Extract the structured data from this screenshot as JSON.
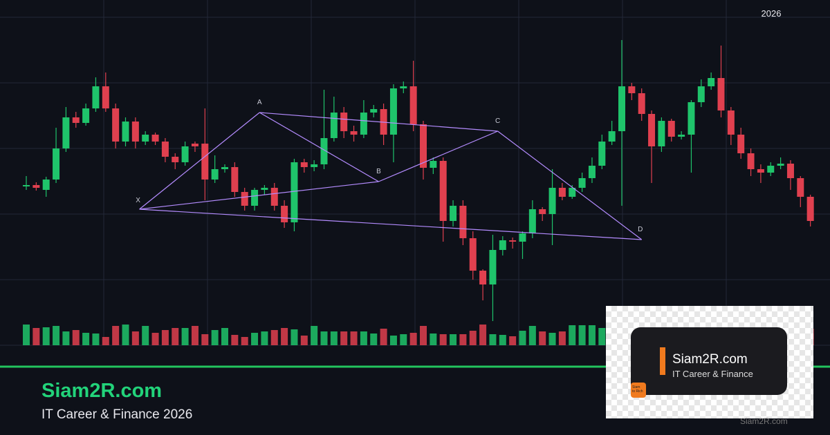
{
  "chart_data": {
    "type": "candlestick",
    "year_label": "2026",
    "open": [
      230,
      232,
      225,
      240,
      285,
      330,
      322,
      343,
      375,
      343,
      295,
      324,
      295,
      305,
      295,
      273,
      265,
      292,
      292,
      240,
      255,
      258,
      222,
      202,
      225,
      228,
      202,
      178,
      265,
      258,
      262,
      300,
      337,
      310,
      305,
      337,
      342,
      305,
      372,
      375,
      320,
      257,
      267,
      180,
      202,
      155,
      108,
      88,
      138,
      152,
      150,
      162,
      197,
      190,
      228,
      215,
      228,
      242,
      260,
      295,
      310,
      375,
      365,
      335,
      288,
      325,
      302,
      305,
      352,
      375,
      387,
      340,
      305,
      278,
      255,
      250,
      260,
      263,
      242,
      215
    ],
    "high": [
      245,
      236,
      244,
      315,
      345,
      338,
      350,
      388,
      395,
      350,
      330,
      330,
      310,
      308,
      300,
      278,
      295,
      295,
      343,
      275,
      262,
      265,
      228,
      228,
      232,
      235,
      210,
      270,
      270,
      268,
      370,
      360,
      345,
      318,
      355,
      348,
      350,
      378,
      382,
      412,
      325,
      272,
      272,
      210,
      210,
      165,
      110,
      160,
      158,
      156,
      165,
      210,
      200,
      255,
      235,
      232,
      250,
      272,
      305,
      325,
      442,
      380,
      372,
      340,
      330,
      328,
      310,
      355,
      385,
      395,
      434,
      345,
      315,
      285,
      262,
      265,
      272,
      268,
      245,
      218
    ],
    "low": [
      225,
      224,
      215,
      235,
      280,
      315,
      318,
      338,
      338,
      285,
      288,
      285,
      290,
      290,
      265,
      255,
      260,
      280,
      210,
      235,
      250,
      215,
      195,
      195,
      218,
      195,
      170,
      165,
      250,
      252,
      255,
      295,
      300,
      295,
      300,
      330,
      290,
      265,
      365,
      310,
      240,
      248,
      150,
      172,
      145,
      95,
      65,
      35,
      130,
      140,
      125,
      155,
      180,
      145,
      210,
      212,
      222,
      235,
      255,
      290,
      202,
      355,
      325,
      235,
      280,
      295,
      298,
      250,
      345,
      370,
      330,
      290,
      270,
      245,
      235,
      245,
      255,
      225,
      200,
      172
    ],
    "close": [
      232,
      228,
      240,
      285,
      330,
      322,
      343,
      375,
      343,
      295,
      324,
      295,
      305,
      295,
      273,
      265,
      288,
      288,
      240,
      255,
      258,
      222,
      202,
      225,
      228,
      202,
      178,
      265,
      258,
      262,
      300,
      337,
      310,
      305,
      337,
      342,
      305,
      372,
      375,
      320,
      257,
      267,
      180,
      202,
      155,
      108,
      88,
      138,
      152,
      150,
      162,
      197,
      190,
      228,
      215,
      228,
      242,
      260,
      295,
      310,
      375,
      365,
      335,
      288,
      325,
      302,
      305,
      352,
      375,
      387,
      340,
      305,
      278,
      255,
      250,
      260,
      263,
      242,
      215,
      180
    ],
    "volume": [
      30,
      25,
      26,
      28,
      20,
      22,
      18,
      17,
      12,
      28,
      30,
      20,
      28,
      18,
      22,
      25,
      25,
      28,
      16,
      22,
      25,
      15,
      12,
      18,
      20,
      22,
      25,
      23,
      14,
      28,
      20,
      20,
      20,
      20,
      20,
      17,
      24,
      14,
      16,
      18,
      28,
      17,
      16,
      16,
      16,
      21,
      30,
      16,
      15,
      13,
      21,
      28,
      20,
      18,
      20,
      29,
      29,
      29,
      25,
      26,
      28,
      25,
      22,
      20,
      24,
      22,
      23,
      26,
      20,
      21,
      18,
      24,
      20,
      22,
      20,
      19,
      21,
      22,
      18,
      24
    ],
    "ylim": [
      0,
      500
    ],
    "volume_ylim": [
      0,
      40
    ],
    "up_color": "#1fc46b",
    "down_color": "#e0404f",
    "pattern_color": "#b48cff",
    "pattern": {
      "points": [
        {
          "label": "X",
          "x": 11.4,
          "y": 197
        },
        {
          "label": "A",
          "x": 23.5,
          "y": 337
        },
        {
          "label": "B",
          "x": 35.5,
          "y": 237
        },
        {
          "label": "C",
          "x": 47.5,
          "y": 310
        },
        {
          "label": "D",
          "x": 62,
          "y": 153
        }
      ]
    }
  },
  "branding": {
    "title": "Siam2R.com",
    "subtitle": "IT Career & Finance 2026",
    "logo": {
      "title": "Siam2R.com",
      "subtitle": "IT Career & Finance",
      "badge": [
        "Siam",
        "to Rich"
      ]
    },
    "watermark": "Siam2R.com"
  }
}
